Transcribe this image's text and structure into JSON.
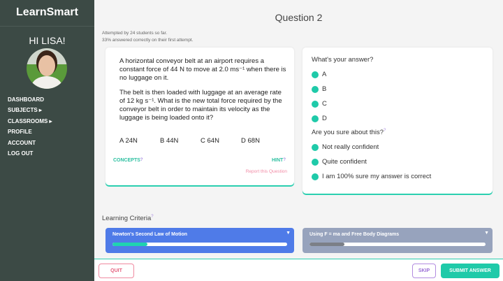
{
  "app": {
    "title": "LearnSmart",
    "greeting": "HI LISA!"
  },
  "nav": [
    {
      "label": "DASHBOARD"
    },
    {
      "label": "SUBJECTS ▸"
    },
    {
      "label": "CLASSROOMS ▸"
    },
    {
      "label": "PROFILE"
    },
    {
      "label": "ACCOUNT"
    },
    {
      "label": "LOG OUT"
    }
  ],
  "question": {
    "title": "Question 2",
    "stats1": "Attempted by 24 students so far.",
    "stats2": "33% answered correctly on their first attempt.",
    "para1": "A horizontal conveyor belt at an airport requires a constant force of 44 N to move at 2.0 ms⁻¹ when there is no luggage on it.",
    "para2": "The belt is then loaded with luggage at an average rate of 12 kg s⁻¹. What is the new total force required by the conveyor belt in order to maintain its velocity as the luggage is being loaded onto it?",
    "options": [
      "A  24N",
      "B  44N",
      "C  64N",
      "D  68N"
    ],
    "concepts": "CONCEPTS",
    "hint": "HINT",
    "help_mark": "?",
    "report": "Report this Question"
  },
  "answer": {
    "heading": "What's your answer?",
    "choices": [
      "A",
      "B",
      "C",
      "D"
    ],
    "confidence_heading": "Are you sure about this?",
    "confidence": [
      "Not really confident",
      "Quite confident",
      "I am 100% sure my answer is correct"
    ]
  },
  "criteria": {
    "label": "Learning Criteria",
    "items": [
      {
        "name": "Newton's Second Law of Motion",
        "progress": 0.2,
        "color": "#4f7be8",
        "fill": "#1fd3b0"
      },
      {
        "name": "Using F = ma and Free Body Diagrams",
        "progress": 0.2,
        "color": "#97a3bd",
        "fill": "#7b7f87"
      }
    ]
  },
  "buttons": {
    "quit": "QUIT",
    "skip": "SKIP",
    "submit": "SUBMIT ANSWER"
  }
}
